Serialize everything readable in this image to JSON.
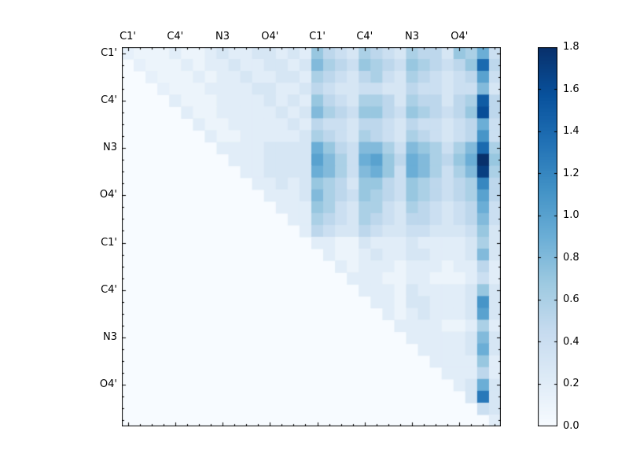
{
  "chart_data": {
    "type": "heatmap",
    "title": "",
    "xlabel": "",
    "ylabel": "",
    "grid_size": 32,
    "vmin": 0.0,
    "vmax": 1.8,
    "x_tick_labels": [
      "C1'",
      "C4'",
      "N3",
      "O4'",
      "C1'",
      "C4'",
      "N3",
      "O4'"
    ],
    "y_tick_labels": [
      "C1'",
      "C4'",
      "N3",
      "O4'",
      "C1'",
      "C4'",
      "N3",
      "O4'"
    ],
    "tick_positions": [
      0,
      4,
      8,
      12,
      16,
      20,
      24,
      28
    ],
    "colorbar": {
      "tick_labels": [
        "0.0",
        "0.2",
        "0.4",
        "0.6",
        "0.8",
        "1.0",
        "1.2",
        "1.4",
        "1.6",
        "1.8"
      ],
      "tick_values": [
        0.0,
        0.2,
        0.4,
        0.6,
        0.8,
        1.0,
        1.2,
        1.4,
        1.6,
        1.8
      ]
    },
    "colormap": {
      "name": "Blues",
      "stops": [
        [
          0.0,
          [
            247,
            251,
            255
          ]
        ],
        [
          0.125,
          [
            222,
            235,
            247
          ]
        ],
        [
          0.25,
          [
            198,
            219,
            239
          ]
        ],
        [
          0.375,
          [
            158,
            202,
            225
          ]
        ],
        [
          0.5,
          [
            107,
            174,
            214
          ]
        ],
        [
          0.625,
          [
            66,
            146,
            198
          ]
        ],
        [
          0.75,
          [
            33,
            113,
            181
          ]
        ],
        [
          0.875,
          [
            8,
            81,
            156
          ]
        ],
        [
          1.0,
          [
            8,
            48,
            107
          ]
        ]
      ]
    },
    "matrix": [
      [
        0.15,
        0.1,
        0.1,
        0.1,
        0.2,
        0.1,
        0.1,
        0.2,
        0.3,
        0.2,
        0.2,
        0.3,
        0.3,
        0.2,
        0.3,
        0.2,
        0.7,
        0.5,
        0.4,
        0.3,
        0.6,
        0.5,
        0.4,
        0.3,
        0.6,
        0.5,
        0.5,
        0.3,
        0.7,
        0.6,
        0.9,
        0.4
      ],
      [
        0,
        0.15,
        0.1,
        0.1,
        0.1,
        0.2,
        0.1,
        0.2,
        0.2,
        0.3,
        0.2,
        0.2,
        0.3,
        0.3,
        0.2,
        0.3,
        0.8,
        0.6,
        0.5,
        0.4,
        0.7,
        0.6,
        0.5,
        0.4,
        0.7,
        0.6,
        0.5,
        0.4,
        0.5,
        0.7,
        1.4,
        0.5
      ],
      [
        0,
        0,
        0.15,
        0.1,
        0.1,
        0.1,
        0.2,
        0.1,
        0.2,
        0.2,
        0.3,
        0.2,
        0.2,
        0.3,
        0.3,
        0.2,
        0.6,
        0.5,
        0.4,
        0.3,
        0.5,
        0.6,
        0.4,
        0.3,
        0.6,
        0.5,
        0.4,
        0.3,
        0.4,
        0.5,
        1.0,
        0.4
      ],
      [
        0,
        0,
        0,
        0.15,
        0.1,
        0.1,
        0.1,
        0.2,
        0.2,
        0.2,
        0.2,
        0.3,
        0.3,
        0.2,
        0.2,
        0.3,
        0.5,
        0.4,
        0.3,
        0.3,
        0.4,
        0.4,
        0.3,
        0.3,
        0.5,
        0.4,
        0.4,
        0.3,
        0.4,
        0.4,
        0.8,
        0.3
      ],
      [
        0,
        0,
        0,
        0,
        0.2,
        0.1,
        0.1,
        0.1,
        0.2,
        0.2,
        0.2,
        0.2,
        0.3,
        0.2,
        0.3,
        0.2,
        0.7,
        0.5,
        0.4,
        0.3,
        0.6,
        0.6,
        0.5,
        0.3,
        0.6,
        0.5,
        0.5,
        0.3,
        0.5,
        0.6,
        1.5,
        0.5
      ],
      [
        0,
        0,
        0,
        0,
        0,
        0.2,
        0.1,
        0.1,
        0.2,
        0.2,
        0.2,
        0.2,
        0.2,
        0.3,
        0.2,
        0.3,
        0.8,
        0.6,
        0.5,
        0.4,
        0.7,
        0.7,
        0.5,
        0.4,
        0.7,
        0.6,
        0.5,
        0.4,
        0.5,
        0.7,
        1.6,
        0.5
      ],
      [
        0,
        0,
        0,
        0,
        0,
        0,
        0.2,
        0.1,
        0.1,
        0.2,
        0.2,
        0.2,
        0.2,
        0.2,
        0.3,
        0.2,
        0.5,
        0.4,
        0.4,
        0.3,
        0.5,
        0.5,
        0.4,
        0.3,
        0.5,
        0.4,
        0.4,
        0.3,
        0.4,
        0.5,
        0.9,
        0.4
      ],
      [
        0,
        0,
        0,
        0,
        0,
        0,
        0,
        0.2,
        0.1,
        0.1,
        0.2,
        0.2,
        0.2,
        0.2,
        0.2,
        0.3,
        0.6,
        0.5,
        0.4,
        0.3,
        0.6,
        0.5,
        0.4,
        0.3,
        0.6,
        0.5,
        0.4,
        0.3,
        0.4,
        0.5,
        1.1,
        0.4
      ],
      [
        0,
        0,
        0,
        0,
        0,
        0,
        0,
        0,
        0.2,
        0.2,
        0.2,
        0.2,
        0.3,
        0.3,
        0.3,
        0.3,
        0.9,
        0.7,
        0.5,
        0.4,
        0.8,
        0.8,
        0.6,
        0.4,
        0.8,
        0.7,
        0.6,
        0.4,
        0.6,
        0.8,
        1.4,
        0.6
      ],
      [
        0,
        0,
        0,
        0,
        0,
        0,
        0,
        0,
        0,
        0.2,
        0.2,
        0.2,
        0.3,
        0.3,
        0.3,
        0.3,
        1.0,
        0.8,
        0.6,
        0.4,
        0.9,
        1.0,
        0.7,
        0.5,
        0.9,
        0.8,
        0.6,
        0.5,
        0.7,
        0.9,
        1.8,
        0.7
      ],
      [
        0,
        0,
        0,
        0,
        0,
        0,
        0,
        0,
        0,
        0,
        0.2,
        0.2,
        0.3,
        0.3,
        0.3,
        0.3,
        0.9,
        0.8,
        0.6,
        0.4,
        0.8,
        0.9,
        0.7,
        0.4,
        0.9,
        0.8,
        0.6,
        0.4,
        0.6,
        0.8,
        1.7,
        0.6
      ],
      [
        0,
        0,
        0,
        0,
        0,
        0,
        0,
        0,
        0,
        0,
        0,
        0.2,
        0.2,
        0.3,
        0.2,
        0.3,
        0.7,
        0.6,
        0.5,
        0.3,
        0.7,
        0.7,
        0.5,
        0.4,
        0.7,
        0.6,
        0.5,
        0.4,
        0.5,
        0.6,
        1.2,
        0.5
      ],
      [
        0,
        0,
        0,
        0,
        0,
        0,
        0,
        0,
        0,
        0,
        0,
        0,
        0.2,
        0.2,
        0.2,
        0.3,
        0.8,
        0.6,
        0.5,
        0.4,
        0.7,
        0.6,
        0.5,
        0.4,
        0.7,
        0.6,
        0.5,
        0.4,
        0.5,
        0.6,
        1.0,
        0.5
      ],
      [
        0,
        0,
        0,
        0,
        0,
        0,
        0,
        0,
        0,
        0,
        0,
        0,
        0,
        0.2,
        0.2,
        0.2,
        0.7,
        0.6,
        0.4,
        0.3,
        0.6,
        0.6,
        0.4,
        0.3,
        0.6,
        0.5,
        0.4,
        0.3,
        0.4,
        0.5,
        0.9,
        0.4
      ],
      [
        0,
        0,
        0,
        0,
        0,
        0,
        0,
        0,
        0,
        0,
        0,
        0,
        0,
        0,
        0.2,
        0.2,
        0.6,
        0.5,
        0.4,
        0.3,
        0.6,
        0.5,
        0.4,
        0.3,
        0.5,
        0.5,
        0.4,
        0.3,
        0.4,
        0.5,
        0.8,
        0.4
      ],
      [
        0,
        0,
        0,
        0,
        0,
        0,
        0,
        0,
        0,
        0,
        0,
        0,
        0,
        0,
        0,
        0.2,
        0.5,
        0.4,
        0.3,
        0.3,
        0.5,
        0.4,
        0.3,
        0.3,
        0.4,
        0.4,
        0.3,
        0.3,
        0.3,
        0.4,
        0.7,
        0.3
      ],
      [
        0,
        0,
        0,
        0,
        0,
        0,
        0,
        0,
        0,
        0,
        0,
        0,
        0,
        0,
        0,
        0,
        0.2,
        0.2,
        0.1,
        0.1,
        0.3,
        0.2,
        0.2,
        0.2,
        0.3,
        0.2,
        0.2,
        0.2,
        0.2,
        0.3,
        0.6,
        0.3
      ],
      [
        0,
        0,
        0,
        0,
        0,
        0,
        0,
        0,
        0,
        0,
        0,
        0,
        0,
        0,
        0,
        0,
        0,
        0.2,
        0.1,
        0.1,
        0.2,
        0.3,
        0.2,
        0.2,
        0.3,
        0.3,
        0.2,
        0.2,
        0.2,
        0.3,
        0.8,
        0.3
      ],
      [
        0,
        0,
        0,
        0,
        0,
        0,
        0,
        0,
        0,
        0,
        0,
        0,
        0,
        0,
        0,
        0,
        0,
        0,
        0.2,
        0.1,
        0.2,
        0.2,
        0.2,
        0.1,
        0.2,
        0.2,
        0.2,
        0.1,
        0.2,
        0.2,
        0.5,
        0.2
      ],
      [
        0,
        0,
        0,
        0,
        0,
        0,
        0,
        0,
        0,
        0,
        0,
        0,
        0,
        0,
        0,
        0,
        0,
        0,
        0,
        0.2,
        0.2,
        0.2,
        0.1,
        0.1,
        0.2,
        0.2,
        0.1,
        0.1,
        0.1,
        0.2,
        0.4,
        0.2
      ],
      [
        0,
        0,
        0,
        0,
        0,
        0,
        0,
        0,
        0,
        0,
        0,
        0,
        0,
        0,
        0,
        0,
        0,
        0,
        0,
        0,
        0.2,
        0.2,
        0.2,
        0.1,
        0.3,
        0.2,
        0.2,
        0.2,
        0.2,
        0.3,
        0.7,
        0.3
      ],
      [
        0,
        0,
        0,
        0,
        0,
        0,
        0,
        0,
        0,
        0,
        0,
        0,
        0,
        0,
        0,
        0,
        0,
        0,
        0,
        0,
        0,
        0.2,
        0.2,
        0.1,
        0.3,
        0.3,
        0.2,
        0.2,
        0.2,
        0.3,
        1.1,
        0.3
      ],
      [
        0,
        0,
        0,
        0,
        0,
        0,
        0,
        0,
        0,
        0,
        0,
        0,
        0,
        0,
        0,
        0,
        0,
        0,
        0,
        0,
        0,
        0,
        0.2,
        0.1,
        0.2,
        0.3,
        0.2,
        0.2,
        0.2,
        0.3,
        1.0,
        0.3
      ],
      [
        0,
        0,
        0,
        0,
        0,
        0,
        0,
        0,
        0,
        0,
        0,
        0,
        0,
        0,
        0,
        0,
        0,
        0,
        0,
        0,
        0,
        0,
        0,
        0.2,
        0.2,
        0.2,
        0.2,
        0.1,
        0.1,
        0.2,
        0.6,
        0.2
      ],
      [
        0,
        0,
        0,
        0,
        0,
        0,
        0,
        0,
        0,
        0,
        0,
        0,
        0,
        0,
        0,
        0,
        0,
        0,
        0,
        0,
        0,
        0,
        0,
        0,
        0.2,
        0.2,
        0.2,
        0.2,
        0.2,
        0.3,
        0.8,
        0.3
      ],
      [
        0,
        0,
        0,
        0,
        0,
        0,
        0,
        0,
        0,
        0,
        0,
        0,
        0,
        0,
        0,
        0,
        0,
        0,
        0,
        0,
        0,
        0,
        0,
        0,
        0,
        0.2,
        0.2,
        0.2,
        0.2,
        0.3,
        0.9,
        0.3
      ],
      [
        0,
        0,
        0,
        0,
        0,
        0,
        0,
        0,
        0,
        0,
        0,
        0,
        0,
        0,
        0,
        0,
        0,
        0,
        0,
        0,
        0,
        0,
        0,
        0,
        0,
        0,
        0.2,
        0.2,
        0.2,
        0.2,
        0.7,
        0.2
      ],
      [
        0,
        0,
        0,
        0,
        0,
        0,
        0,
        0,
        0,
        0,
        0,
        0,
        0,
        0,
        0,
        0,
        0,
        0,
        0,
        0,
        0,
        0,
        0,
        0,
        0,
        0,
        0,
        0.2,
        0.2,
        0.2,
        0.5,
        0.2
      ],
      [
        0,
        0,
        0,
        0,
        0,
        0,
        0,
        0,
        0,
        0,
        0,
        0,
        0,
        0,
        0,
        0,
        0,
        0,
        0,
        0,
        0,
        0,
        0,
        0,
        0,
        0,
        0,
        0,
        0.2,
        0.3,
        0.9,
        0.3
      ],
      [
        0,
        0,
        0,
        0,
        0,
        0,
        0,
        0,
        0,
        0,
        0,
        0,
        0,
        0,
        0,
        0,
        0,
        0,
        0,
        0,
        0,
        0,
        0,
        0,
        0,
        0,
        0,
        0,
        0,
        0.3,
        1.3,
        0.3
      ],
      [
        0,
        0,
        0,
        0,
        0,
        0,
        0,
        0,
        0,
        0,
        0,
        0,
        0,
        0,
        0,
        0,
        0,
        0,
        0,
        0,
        0,
        0,
        0,
        0,
        0,
        0,
        0,
        0,
        0,
        0,
        0.4,
        0.3
      ],
      [
        0,
        0,
        0,
        0,
        0,
        0,
        0,
        0,
        0,
        0,
        0,
        0,
        0,
        0,
        0,
        0,
        0,
        0,
        0,
        0,
        0,
        0,
        0,
        0,
        0,
        0,
        0,
        0,
        0,
        0,
        0,
        0.2
      ]
    ]
  }
}
